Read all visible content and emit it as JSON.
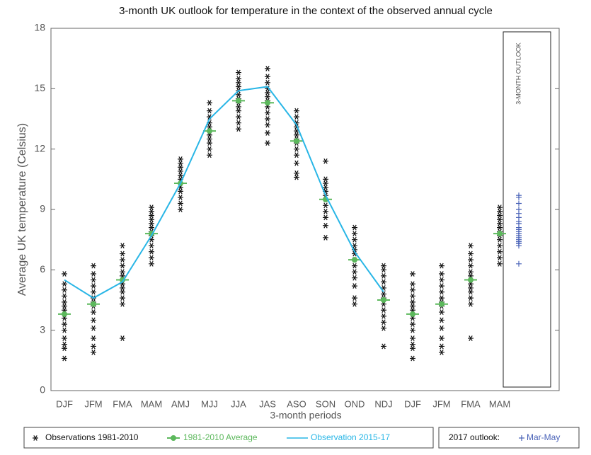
{
  "chart_data": {
    "type": "combo",
    "title": "3-month UK outlook for temperature in the context of the observed annual cycle",
    "x_label": "3-month periods",
    "y_label": "Average UK temperature (Celsius)",
    "categories": [
      "DJF",
      "JFM",
      "FMA",
      "MAM",
      "AMJ",
      "MJJ",
      "JJA",
      "JAS",
      "ASO",
      "SON",
      "OND",
      "NDJ",
      "DJF",
      "JFM",
      "FMA",
      "MAM"
    ],
    "ylim": [
      0,
      18
    ],
    "yticks": [
      0,
      3,
      6,
      9,
      12,
      15,
      18
    ],
    "series": [
      {
        "name": "Observations 1981-2010",
        "type": "scatter",
        "color": "#111111",
        "values": [
          [
            1.6,
            2.1,
            2.3,
            2.6,
            3.0,
            3.3,
            3.6,
            3.8,
            4.0,
            4.2,
            4.4,
            4.7,
            5.0,
            5.3,
            5.8
          ],
          [
            1.9,
            2.2,
            2.6,
            3.1,
            3.5,
            3.9,
            4.2,
            4.4,
            4.6,
            4.9,
            5.2,
            5.5,
            5.8,
            6.2
          ],
          [
            2.6,
            4.3,
            4.6,
            4.9,
            5.1,
            5.3,
            5.5,
            5.7,
            5.9,
            6.2,
            6.5,
            6.8,
            7.2
          ],
          [
            6.3,
            6.6,
            6.9,
            7.2,
            7.5,
            7.7,
            7.9,
            8.1,
            8.3,
            8.5,
            8.7,
            8.9,
            9.1
          ],
          [
            9.0,
            9.3,
            9.6,
            9.9,
            10.1,
            10.3,
            10.5,
            10.7,
            10.9,
            11.1,
            11.3,
            11.5
          ],
          [
            11.7,
            12.0,
            12.3,
            12.5,
            12.7,
            12.9,
            13.1,
            13.3,
            13.6,
            13.9,
            14.3
          ],
          [
            13.0,
            13.3,
            13.6,
            13.9,
            14.1,
            14.3,
            14.5,
            14.7,
            14.9,
            15.1,
            15.3,
            15.5,
            15.8
          ],
          [
            12.3,
            12.8,
            13.2,
            13.5,
            13.8,
            14.1,
            14.4,
            14.6,
            14.8,
            15.0,
            15.3,
            15.6,
            16.0
          ],
          [
            10.6,
            10.8,
            11.3,
            11.7,
            12.0,
            12.3,
            12.5,
            12.7,
            12.9,
            13.1,
            13.3,
            13.6,
            13.9
          ],
          [
            7.6,
            8.2,
            8.6,
            8.9,
            9.2,
            9.5,
            9.7,
            9.9,
            10.1,
            10.3,
            10.5,
            11.4
          ],
          [
            4.3,
            4.6,
            5.2,
            5.6,
            5.9,
            6.2,
            6.5,
            6.8,
            7.0,
            7.2,
            7.5,
            7.8,
            8.1
          ],
          [
            2.2,
            3.1,
            3.4,
            3.7,
            4.0,
            4.3,
            4.6,
            4.8,
            5.1,
            5.4,
            5.7,
            6.0,
            6.2
          ],
          [
            1.6,
            2.1,
            2.3,
            2.6,
            3.0,
            3.3,
            3.6,
            3.8,
            4.0,
            4.2,
            4.4,
            4.7,
            5.0,
            5.3,
            5.8
          ],
          [
            1.9,
            2.2,
            2.6,
            3.1,
            3.5,
            3.9,
            4.2,
            4.4,
            4.6,
            4.9,
            5.2,
            5.5,
            5.8,
            6.2
          ],
          [
            2.6,
            4.3,
            4.6,
            4.9,
            5.1,
            5.3,
            5.5,
            5.7,
            5.9,
            6.2,
            6.5,
            6.8,
            7.2
          ],
          [
            6.3,
            6.6,
            6.9,
            7.2,
            7.5,
            7.7,
            7.9,
            8.1,
            8.3,
            8.5,
            8.7,
            8.9,
            9.1
          ]
        ]
      },
      {
        "name": "1981-2010 Average",
        "type": "average",
        "color": "#5cb85c",
        "values": [
          3.8,
          4.3,
          5.5,
          7.8,
          10.3,
          12.9,
          14.4,
          14.3,
          12.4,
          9.5,
          6.5,
          4.5,
          3.8,
          4.3,
          5.5,
          7.8
        ]
      },
      {
        "name": "Observation 2015-17",
        "type": "line",
        "color": "#29b6e6",
        "values": [
          5.5,
          4.6,
          5.4,
          7.7,
          10.3,
          13.5,
          14.9,
          15.1,
          13.2,
          9.7,
          6.9,
          4.9,
          null,
          null,
          null,
          null
        ]
      }
    ],
    "outlook": {
      "label": "3-MONTH OUTLOOK",
      "legend_title": "2017 outlook:",
      "name": "Mar-May",
      "color": "#4a63b8",
      "values": [
        6.3,
        7.2,
        7.3,
        7.3,
        7.4,
        7.4,
        7.5,
        7.6,
        7.7,
        7.8,
        7.9,
        8.0,
        8.1,
        8.3,
        8.4,
        8.6,
        8.8,
        9.0,
        9.3,
        9.6,
        9.7
      ]
    }
  }
}
